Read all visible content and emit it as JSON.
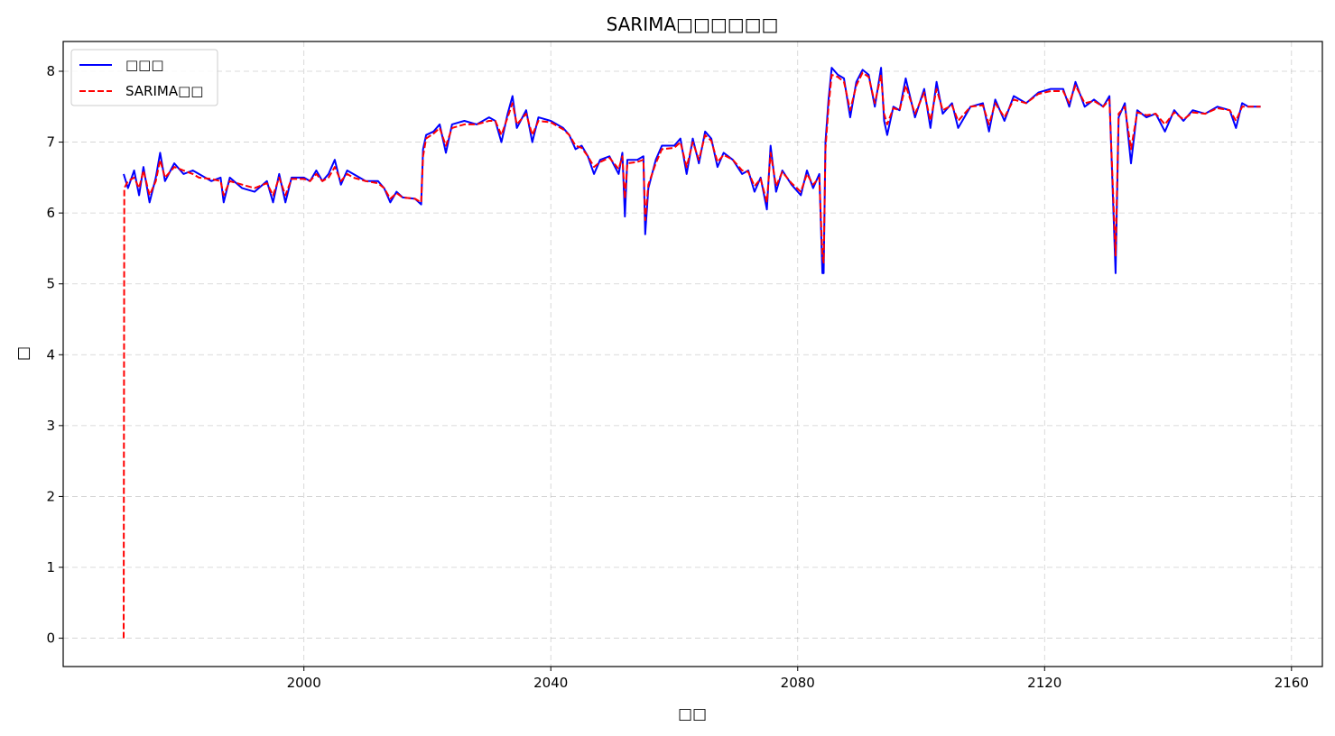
{
  "chart_data": {
    "type": "line",
    "title": "SARIMA□□□□□□",
    "xlabel": "□□",
    "ylabel": "□",
    "xlim": [
      1961,
      2165
    ],
    "ylim": [
      -0.4,
      8.42
    ],
    "xticks": [
      "2000",
      "2040",
      "2080",
      "2120",
      "2160"
    ],
    "yticks": [
      "0",
      "1",
      "2",
      "3",
      "4",
      "5",
      "6",
      "7",
      "8"
    ],
    "grid": true,
    "legend_position": "top-left",
    "series": [
      {
        "name": "□□□",
        "color": "#0000ff",
        "style": "solid",
        "points": [
          [
            1970.8,
            6.55
          ],
          [
            1971.5,
            6.35
          ],
          [
            1972.5,
            6.6
          ],
          [
            1973.3,
            6.25
          ],
          [
            1974,
            6.65
          ],
          [
            1975,
            6.15
          ],
          [
            1976,
            6.5
          ],
          [
            1976.7,
            6.85
          ],
          [
            1977.5,
            6.45
          ],
          [
            1979,
            6.7
          ],
          [
            1980.5,
            6.55
          ],
          [
            1982,
            6.6
          ],
          [
            1983,
            6.55
          ],
          [
            1985,
            6.45
          ],
          [
            1986.5,
            6.5
          ],
          [
            1987,
            6.15
          ],
          [
            1988,
            6.5
          ],
          [
            1990,
            6.35
          ],
          [
            1992,
            6.3
          ],
          [
            1994,
            6.45
          ],
          [
            1995,
            6.15
          ],
          [
            1996,
            6.55
          ],
          [
            1997,
            6.15
          ],
          [
            1998,
            6.5
          ],
          [
            2000,
            6.5
          ],
          [
            2001,
            6.45
          ],
          [
            2002,
            6.6
          ],
          [
            2003,
            6.45
          ],
          [
            2004,
            6.55
          ],
          [
            2005,
            6.75
          ],
          [
            2006,
            6.4
          ],
          [
            2007,
            6.6
          ],
          [
            2008,
            6.55
          ],
          [
            2010,
            6.45
          ],
          [
            2012,
            6.45
          ],
          [
            2013,
            6.35
          ],
          [
            2014,
            6.15
          ],
          [
            2015,
            6.3
          ],
          [
            2016,
            6.22
          ],
          [
            2018,
            6.2
          ],
          [
            2019,
            6.12
          ],
          [
            2019.3,
            6.9
          ],
          [
            2019.8,
            7.1
          ],
          [
            2021,
            7.15
          ],
          [
            2022,
            7.25
          ],
          [
            2023,
            6.85
          ],
          [
            2024,
            7.25
          ],
          [
            2026,
            7.3
          ],
          [
            2028,
            7.25
          ],
          [
            2030,
            7.35
          ],
          [
            2031,
            7.3
          ],
          [
            2032,
            7.0
          ],
          [
            2033,
            7.4
          ],
          [
            2033.8,
            7.65
          ],
          [
            2034.5,
            7.2
          ],
          [
            2036,
            7.45
          ],
          [
            2037,
            7.0
          ],
          [
            2038,
            7.35
          ],
          [
            2040,
            7.3
          ],
          [
            2042,
            7.2
          ],
          [
            2043,
            7.1
          ],
          [
            2044,
            6.9
          ],
          [
            2045,
            6.95
          ],
          [
            2046,
            6.8
          ],
          [
            2047,
            6.55
          ],
          [
            2048,
            6.75
          ],
          [
            2049.5,
            6.8
          ],
          [
            2051,
            6.55
          ],
          [
            2051.6,
            6.85
          ],
          [
            2052,
            5.95
          ],
          [
            2052.4,
            6.75
          ],
          [
            2054,
            6.75
          ],
          [
            2055,
            6.8
          ],
          [
            2055.3,
            5.7
          ],
          [
            2055.8,
            6.35
          ],
          [
            2057,
            6.75
          ],
          [
            2058,
            6.95
          ],
          [
            2060,
            6.95
          ],
          [
            2061,
            7.05
          ],
          [
            2062,
            6.55
          ],
          [
            2063,
            7.05
          ],
          [
            2064,
            6.7
          ],
          [
            2065,
            7.15
          ],
          [
            2066,
            7.05
          ],
          [
            2067,
            6.65
          ],
          [
            2068,
            6.85
          ],
          [
            2069.5,
            6.75
          ],
          [
            2071,
            6.55
          ],
          [
            2072,
            6.6
          ],
          [
            2073,
            6.3
          ],
          [
            2074,
            6.5
          ],
          [
            2075,
            6.05
          ],
          [
            2075.6,
            6.95
          ],
          [
            2076.5,
            6.3
          ],
          [
            2077.5,
            6.6
          ],
          [
            2079,
            6.4
          ],
          [
            2080.5,
            6.25
          ],
          [
            2081.5,
            6.6
          ],
          [
            2082.5,
            6.35
          ],
          [
            2083.5,
            6.55
          ],
          [
            2084,
            5.15
          ],
          [
            2084.2,
            5.15
          ],
          [
            2084.5,
            7.0
          ],
          [
            2085,
            7.6
          ],
          [
            2085.5,
            8.05
          ],
          [
            2086.5,
            7.95
          ],
          [
            2087.5,
            7.9
          ],
          [
            2088.5,
            7.35
          ],
          [
            2089.5,
            7.85
          ],
          [
            2090.5,
            8.02
          ],
          [
            2091.5,
            7.95
          ],
          [
            2092.5,
            7.5
          ],
          [
            2093.5,
            8.05
          ],
          [
            2094,
            7.3
          ],
          [
            2094.5,
            7.1
          ],
          [
            2095.5,
            7.5
          ],
          [
            2096.5,
            7.45
          ],
          [
            2097.5,
            7.9
          ],
          [
            2099,
            7.35
          ],
          [
            2100.5,
            7.75
          ],
          [
            2101.5,
            7.2
          ],
          [
            2102.5,
            7.85
          ],
          [
            2103.5,
            7.4
          ],
          [
            2105,
            7.55
          ],
          [
            2106,
            7.2
          ],
          [
            2108,
            7.5
          ],
          [
            2110,
            7.55
          ],
          [
            2111,
            7.15
          ],
          [
            2112,
            7.6
          ],
          [
            2113.5,
            7.3
          ],
          [
            2115,
            7.65
          ],
          [
            2117,
            7.55
          ],
          [
            2119,
            7.7
          ],
          [
            2121,
            7.75
          ],
          [
            2123,
            7.75
          ],
          [
            2124,
            7.5
          ],
          [
            2125,
            7.85
          ],
          [
            2126.5,
            7.5
          ],
          [
            2128,
            7.6
          ],
          [
            2129.5,
            7.5
          ],
          [
            2130.5,
            7.65
          ],
          [
            2131.5,
            5.15
          ],
          [
            2132,
            7.35
          ],
          [
            2133,
            7.55
          ],
          [
            2134,
            6.7
          ],
          [
            2135,
            7.45
          ],
          [
            2136.5,
            7.35
          ],
          [
            2138,
            7.4
          ],
          [
            2139.5,
            7.15
          ],
          [
            2141,
            7.45
          ],
          [
            2142.5,
            7.3
          ],
          [
            2144,
            7.45
          ],
          [
            2146,
            7.4
          ],
          [
            2148,
            7.5
          ],
          [
            2150,
            7.45
          ],
          [
            2151,
            7.2
          ],
          [
            2152,
            7.55
          ],
          [
            2153,
            7.5
          ],
          [
            2155,
            7.5
          ]
        ]
      },
      {
        "name": "SARIMA□□",
        "color": "#ff0000",
        "style": "dashed",
        "points": [
          [
            1970.8,
            0.0
          ],
          [
            1970.9,
            6.35
          ],
          [
            1971.5,
            6.45
          ],
          [
            1972.5,
            6.5
          ],
          [
            1973.3,
            6.35
          ],
          [
            1974,
            6.6
          ],
          [
            1975,
            6.25
          ],
          [
            1976,
            6.45
          ],
          [
            1976.7,
            6.75
          ],
          [
            1977.5,
            6.5
          ],
          [
            1979,
            6.65
          ],
          [
            1980.5,
            6.6
          ],
          [
            1982,
            6.55
          ],
          [
            1983,
            6.5
          ],
          [
            1985,
            6.48
          ],
          [
            1986.5,
            6.45
          ],
          [
            1987,
            6.25
          ],
          [
            1988,
            6.45
          ],
          [
            1990,
            6.4
          ],
          [
            1992,
            6.35
          ],
          [
            1994,
            6.42
          ],
          [
            1995,
            6.25
          ],
          [
            1996,
            6.5
          ],
          [
            1997,
            6.25
          ],
          [
            1998,
            6.48
          ],
          [
            2000,
            6.48
          ],
          [
            2001,
            6.45
          ],
          [
            2002,
            6.55
          ],
          [
            2003,
            6.45
          ],
          [
            2004,
            6.5
          ],
          [
            2005,
            6.65
          ],
          [
            2006,
            6.45
          ],
          [
            2007,
            6.55
          ],
          [
            2008,
            6.5
          ],
          [
            2010,
            6.45
          ],
          [
            2012,
            6.42
          ],
          [
            2013,
            6.35
          ],
          [
            2014,
            6.2
          ],
          [
            2015,
            6.28
          ],
          [
            2016,
            6.22
          ],
          [
            2018,
            6.2
          ],
          [
            2019,
            6.15
          ],
          [
            2019.3,
            6.8
          ],
          [
            2019.8,
            7.05
          ],
          [
            2021,
            7.12
          ],
          [
            2022,
            7.2
          ],
          [
            2023,
            6.95
          ],
          [
            2024,
            7.2
          ],
          [
            2026,
            7.25
          ],
          [
            2028,
            7.25
          ],
          [
            2030,
            7.3
          ],
          [
            2031,
            7.3
          ],
          [
            2032,
            7.1
          ],
          [
            2033,
            7.35
          ],
          [
            2033.8,
            7.55
          ],
          [
            2034.5,
            7.25
          ],
          [
            2036,
            7.4
          ],
          [
            2037,
            7.1
          ],
          [
            2038,
            7.3
          ],
          [
            2040,
            7.28
          ],
          [
            2042,
            7.18
          ],
          [
            2043,
            7.1
          ],
          [
            2044,
            6.95
          ],
          [
            2045,
            6.92
          ],
          [
            2046,
            6.8
          ],
          [
            2047,
            6.65
          ],
          [
            2048,
            6.72
          ],
          [
            2049.5,
            6.78
          ],
          [
            2051,
            6.62
          ],
          [
            2051.6,
            6.8
          ],
          [
            2052,
            6.2
          ],
          [
            2052.4,
            6.7
          ],
          [
            2054,
            6.72
          ],
          [
            2055,
            6.75
          ],
          [
            2055.3,
            5.9
          ],
          [
            2055.8,
            6.4
          ],
          [
            2057,
            6.7
          ],
          [
            2058,
            6.9
          ],
          [
            2060,
            6.92
          ],
          [
            2061,
            7.0
          ],
          [
            2062,
            6.65
          ],
          [
            2063,
            7.0
          ],
          [
            2064,
            6.75
          ],
          [
            2065,
            7.1
          ],
          [
            2066,
            7.02
          ],
          [
            2067,
            6.72
          ],
          [
            2068,
            6.82
          ],
          [
            2069.5,
            6.75
          ],
          [
            2071,
            6.6
          ],
          [
            2072,
            6.58
          ],
          [
            2073,
            6.38
          ],
          [
            2074,
            6.48
          ],
          [
            2075,
            6.15
          ],
          [
            2075.6,
            6.85
          ],
          [
            2076.5,
            6.38
          ],
          [
            2077.5,
            6.58
          ],
          [
            2079,
            6.42
          ],
          [
            2080.5,
            6.3
          ],
          [
            2081.5,
            6.55
          ],
          [
            2082.5,
            6.4
          ],
          [
            2083.5,
            6.5
          ],
          [
            2084,
            5.4
          ],
          [
            2084.2,
            5.3
          ],
          [
            2084.5,
            6.9
          ],
          [
            2085,
            7.5
          ],
          [
            2085.5,
            7.95
          ],
          [
            2086.5,
            7.92
          ],
          [
            2087.5,
            7.85
          ],
          [
            2088.5,
            7.45
          ],
          [
            2089.5,
            7.8
          ],
          [
            2090.5,
            7.98
          ],
          [
            2091.5,
            7.92
          ],
          [
            2092.5,
            7.55
          ],
          [
            2093.5,
            7.95
          ],
          [
            2094,
            7.4
          ],
          [
            2094.5,
            7.25
          ],
          [
            2095.5,
            7.48
          ],
          [
            2096.5,
            7.45
          ],
          [
            2097.5,
            7.8
          ],
          [
            2099,
            7.4
          ],
          [
            2100.5,
            7.7
          ],
          [
            2101.5,
            7.3
          ],
          [
            2102.5,
            7.75
          ],
          [
            2103.5,
            7.45
          ],
          [
            2105,
            7.52
          ],
          [
            2106,
            7.3
          ],
          [
            2108,
            7.5
          ],
          [
            2110,
            7.52
          ],
          [
            2111,
            7.25
          ],
          [
            2112,
            7.55
          ],
          [
            2113.5,
            7.35
          ],
          [
            2115,
            7.6
          ],
          [
            2117,
            7.55
          ],
          [
            2119,
            7.68
          ],
          [
            2121,
            7.72
          ],
          [
            2123,
            7.72
          ],
          [
            2124,
            7.55
          ],
          [
            2125,
            7.8
          ],
          [
            2126.5,
            7.55
          ],
          [
            2128,
            7.58
          ],
          [
            2129.5,
            7.5
          ],
          [
            2130.5,
            7.6
          ],
          [
            2131.5,
            5.4
          ],
          [
            2132,
            7.4
          ],
          [
            2133,
            7.5
          ],
          [
            2134,
            6.9
          ],
          [
            2135,
            7.42
          ],
          [
            2136.5,
            7.38
          ],
          [
            2138,
            7.4
          ],
          [
            2139.5,
            7.25
          ],
          [
            2141,
            7.42
          ],
          [
            2142.5,
            7.32
          ],
          [
            2144,
            7.42
          ],
          [
            2146,
            7.4
          ],
          [
            2148,
            7.48
          ],
          [
            2150,
            7.45
          ],
          [
            2151,
            7.3
          ],
          [
            2152,
            7.5
          ],
          [
            2153,
            7.5
          ],
          [
            2155,
            7.5
          ]
        ]
      }
    ]
  }
}
